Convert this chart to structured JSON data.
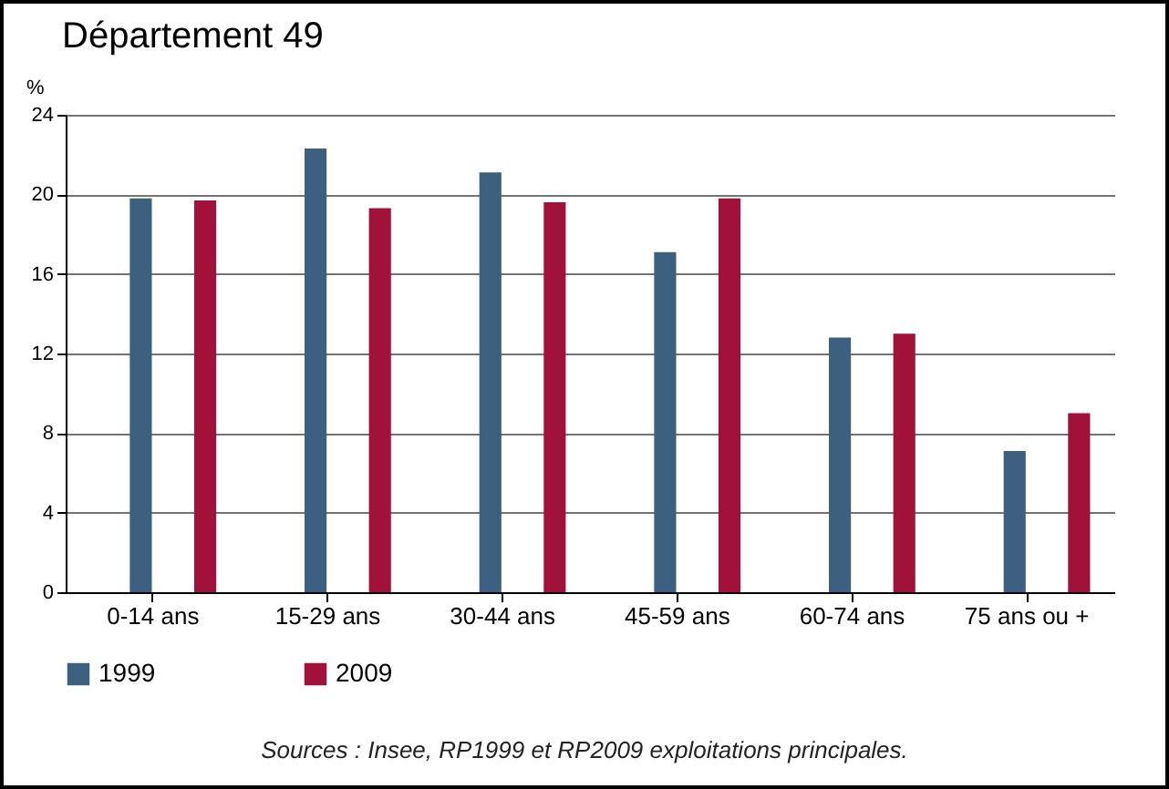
{
  "chart_data": {
    "type": "bar",
    "title": "Département 49",
    "ylabel": "%",
    "categories": [
      "0-14 ans",
      "15-29 ans",
      "30-44 ans",
      "45-59 ans",
      "60-74 ans",
      "75 ans ou +"
    ],
    "series": [
      {
        "name": "1999",
        "color": "#3d5f80",
        "values": [
          19.8,
          22.3,
          21.1,
          17.1,
          12.8,
          7.1
        ]
      },
      {
        "name": "2009",
        "color": "#a0123a",
        "values": [
          19.7,
          19.3,
          19.6,
          19.8,
          13.0,
          9.0
        ]
      }
    ],
    "ylim": [
      0,
      24
    ],
    "yticks": [
      0,
      4,
      8,
      12,
      16,
      20,
      24
    ],
    "grid": "y",
    "legend": "bottom",
    "annotations": [
      "Sources : Insee, RP1999 et RP2009 exploitations principales."
    ]
  }
}
